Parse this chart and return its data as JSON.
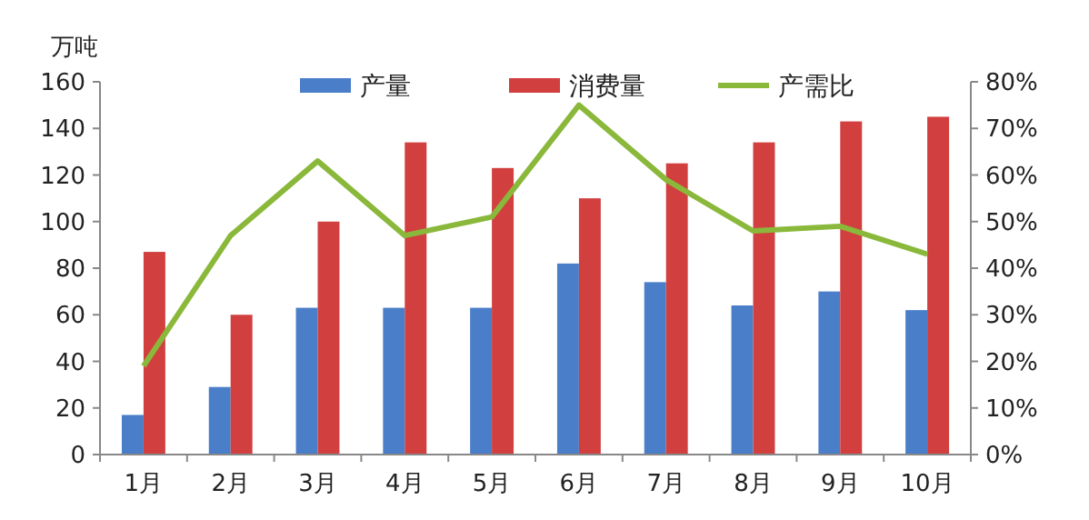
{
  "chart_data": {
    "type": "bar",
    "ylabel": "万吨",
    "categories": [
      "1月",
      "2月",
      "3月",
      "4月",
      "5月",
      "6月",
      "7月",
      "8月",
      "9月",
      "10月"
    ],
    "series": [
      {
        "name": "产量",
        "color": "#4a7ec8",
        "values": [
          17,
          29,
          63,
          63,
          63,
          82,
          74,
          64,
          70,
          62
        ]
      },
      {
        "name": "消费量",
        "color": "#d13f3f",
        "values": [
          87,
          60,
          100,
          134,
          123,
          110,
          125,
          134,
          143,
          145
        ]
      },
      {
        "name": "产需比",
        "type": "line",
        "axis": "y2",
        "color": "#8ab83a",
        "values": [
          19,
          47,
          63,
          47,
          51,
          75,
          59,
          48,
          49,
          43
        ]
      }
    ],
    "ylim": [
      0,
      160
    ],
    "yticks": [
      0,
      20,
      40,
      60,
      80,
      100,
      120,
      140,
      160
    ],
    "y2lim": [
      0,
      80
    ],
    "y2ticks": [
      {
        "value": 0,
        "label": "0%"
      },
      {
        "value": 10,
        "label": "10%"
      },
      {
        "value": 20,
        "label": "20%"
      },
      {
        "value": 30,
        "label": "30%"
      },
      {
        "value": 40,
        "label": "40%"
      },
      {
        "value": 50,
        "label": "50%"
      },
      {
        "value": 60,
        "label": "60%"
      },
      {
        "value": 70,
        "label": "70%"
      },
      {
        "value": 80,
        "label": "80%"
      }
    ],
    "legend": "top",
    "grid": false,
    "marker": "none"
  }
}
